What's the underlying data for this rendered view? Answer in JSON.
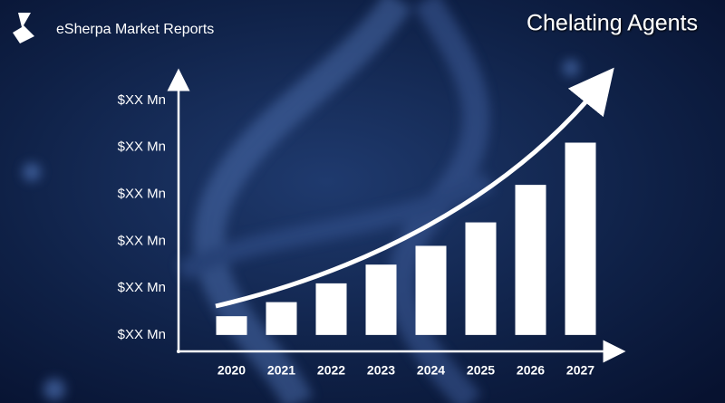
{
  "brand": "eSherpa Market Reports",
  "chart_data": {
    "type": "bar",
    "title": "Chelating Agents",
    "categories": [
      "2020",
      "2021",
      "2022",
      "2023",
      "2024",
      "2025",
      "2026",
      "2027"
    ],
    "values": [
      0.4,
      0.7,
      1.1,
      1.5,
      1.9,
      2.4,
      3.2,
      4.1
    ],
    "color": "#ffffff",
    "ylim": [
      -0.35,
      5.5
    ],
    "yticks": [
      {
        "value": 0,
        "label": "$XX Mn"
      },
      {
        "value": 1,
        "label": "$XX Mn"
      },
      {
        "value": 2,
        "label": "$XX Mn"
      },
      {
        "value": 3,
        "label": "$XX Mn"
      },
      {
        "value": 4,
        "label": "$XX Mn"
      },
      {
        "value": 5,
        "label": "$XX Mn"
      }
    ]
  }
}
